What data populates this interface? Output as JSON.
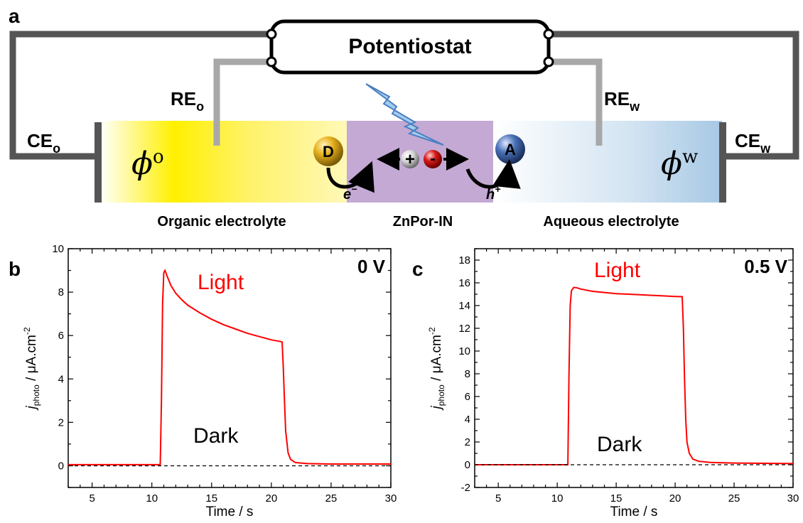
{
  "panels": {
    "a": "a",
    "b": "b",
    "c": "c"
  },
  "schematic": {
    "potentiostat": "Potentiostat",
    "re_o": {
      "main": "RE",
      "sub": "o"
    },
    "re_w": {
      "main": "RE",
      "sub": "w"
    },
    "ce_o": {
      "main": "CE",
      "sub": "o"
    },
    "ce_w": {
      "main": "CE",
      "sub": "w"
    },
    "phi_o": {
      "main": "ϕ",
      "sup": "o"
    },
    "phi_w": {
      "main": "ϕ",
      "sup": "w"
    },
    "donor": "D",
    "acceptor": "A",
    "plus": "+",
    "minus": "-",
    "electron": {
      "main": "e",
      "sup": "−"
    },
    "hole": {
      "main": "h",
      "sup": "+"
    },
    "organic_label": "Organic electrolyte",
    "interface_label": "ZnPor-IN",
    "aqueous_label": "Aqueous electrolyte",
    "colors": {
      "organic": "#ffef3a",
      "interface": "#c3a9d3",
      "aqueous": "#a8cbe6",
      "wire_dark": "#555555",
      "wire_light": "#a8a8a8",
      "donor": "#d8a010",
      "acceptor": "#3a62a8",
      "hole_ball": "#e0e0e0",
      "electron_ball": "#d01818",
      "bolt": "#9ec8f0"
    }
  },
  "chart_data": [
    {
      "type": "line",
      "panel": "b",
      "title": "0 V",
      "xlabel": "Time / s",
      "ylabel": {
        "main": "j",
        "sub": "photo",
        "rest": " / μA.cm",
        "sup": "-2"
      },
      "xlim": [
        3,
        30
      ],
      "ylim": [
        -1,
        10
      ],
      "xticks": [
        5,
        10,
        15,
        20,
        25,
        30
      ],
      "yticks": [
        0,
        2,
        4,
        6,
        8,
        10
      ],
      "annotations": {
        "light": "Light",
        "dark": "Dark"
      },
      "series": [
        {
          "color": "#ff0000",
          "x": [
            3,
            10.7,
            10.8,
            10.9,
            11.0,
            11.1,
            11.3,
            11.6,
            12.0,
            12.5,
            13.0,
            14.0,
            15.0,
            16.0,
            17.0,
            18.0,
            19.0,
            20.0,
            20.8,
            20.9,
            21.0,
            21.1,
            21.2,
            21.4,
            21.6,
            22.0,
            23.0,
            25.0,
            30.0
          ],
          "y": [
            0.05,
            0.05,
            3.0,
            7.5,
            8.9,
            9.0,
            8.7,
            8.3,
            7.95,
            7.65,
            7.4,
            7.05,
            6.75,
            6.5,
            6.3,
            6.1,
            5.95,
            5.8,
            5.72,
            5.7,
            4.5,
            3.0,
            1.6,
            0.6,
            0.3,
            0.15,
            0.1,
            0.08,
            0.08
          ]
        },
        {
          "name": "baseline",
          "style": "dashed",
          "color": "#000000",
          "x": [
            3,
            30
          ],
          "y": [
            0,
            0
          ]
        }
      ]
    },
    {
      "type": "line",
      "panel": "c",
      "title": "0.5 V",
      "xlabel": "Time / s",
      "ylabel": {
        "main": "j",
        "sub": "photo",
        "rest": " / μA.cm",
        "sup": "-2"
      },
      "xlim": [
        3,
        30
      ],
      "ylim": [
        -2,
        19
      ],
      "xticks": [
        5,
        10,
        15,
        20,
        25,
        30
      ],
      "yticks": [
        -2,
        0,
        2,
        4,
        6,
        8,
        10,
        12,
        14,
        16,
        18
      ],
      "annotations": {
        "light": "Light",
        "dark": "Dark"
      },
      "series": [
        {
          "color": "#ff0000",
          "x": [
            3,
            10.9,
            11.0,
            11.1,
            11.2,
            11.4,
            11.7,
            12.0,
            13.0,
            14.0,
            15.0,
            16.0,
            17.0,
            18.0,
            19.0,
            20.0,
            20.6,
            20.7,
            20.8,
            20.9,
            21.0,
            21.2,
            21.5,
            22.0,
            23.0,
            25.0,
            30.0
          ],
          "y": [
            0.0,
            0.0,
            8.0,
            14.0,
            15.3,
            15.6,
            15.55,
            15.45,
            15.25,
            15.15,
            15.05,
            15.0,
            14.95,
            14.9,
            14.85,
            14.8,
            14.78,
            12.0,
            7.5,
            4.0,
            2.0,
            1.0,
            0.5,
            0.3,
            0.2,
            0.15,
            0.1
          ]
        },
        {
          "name": "baseline",
          "style": "dashed",
          "color": "#000000",
          "x": [
            3,
            30
          ],
          "y": [
            0,
            0
          ]
        }
      ]
    }
  ]
}
